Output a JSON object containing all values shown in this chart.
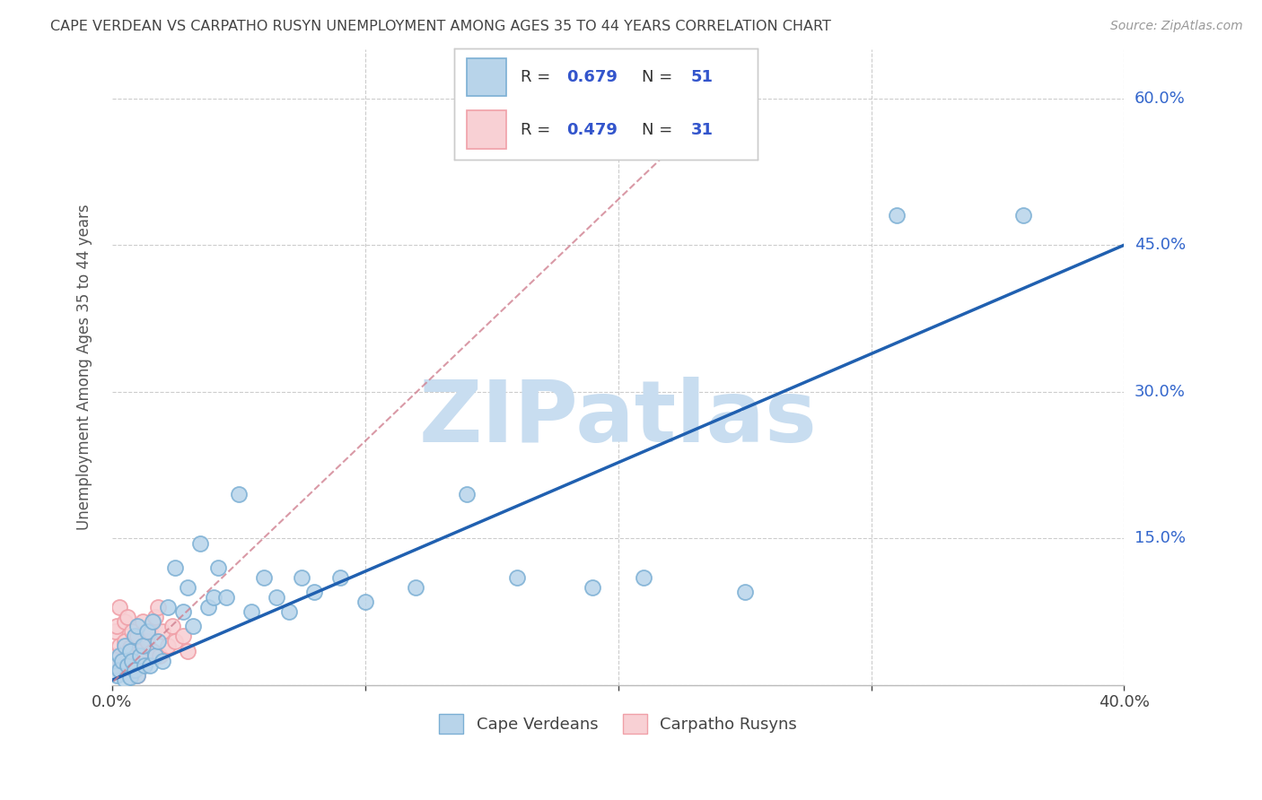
{
  "title": "CAPE VERDEAN VS CARPATHO RUSYN UNEMPLOYMENT AMONG AGES 35 TO 44 YEARS CORRELATION CHART",
  "source": "Source: ZipAtlas.com",
  "ylabel": "Unemployment Among Ages 35 to 44 years",
  "xlim": [
    0.0,
    0.4
  ],
  "ylim": [
    0.0,
    0.65
  ],
  "xticks": [
    0.0,
    0.1,
    0.2,
    0.3,
    0.4
  ],
  "xtick_labels": [
    "0.0%",
    "",
    "",
    "",
    "40.0%"
  ],
  "yticks": [
    0.0,
    0.15,
    0.3,
    0.45,
    0.6
  ],
  "ytick_labels": [
    "",
    "15.0%",
    "30.0%",
    "45.0%",
    "60.0%"
  ],
  "watermark": "ZIPatlas",
  "watermark_color": "#c8ddf0",
  "cv_color_edge": "#7bafd4",
  "cv_color_fill": "#b8d4ea",
  "cr_color_edge": "#f0a0a8",
  "cr_color_fill": "#f8d0d4",
  "trend_blue_color": "#2060b0",
  "trend_pink_color": "#d08090",
  "background": "#ffffff",
  "grid_color": "#cccccc",
  "title_color": "#444444",
  "ylabel_color": "#555555",
  "tick_color_x": "#444444",
  "tick_color_y": "#3366cc",
  "cv_scatter_x": [
    0.001,
    0.002,
    0.003,
    0.003,
    0.004,
    0.005,
    0.005,
    0.006,
    0.007,
    0.007,
    0.008,
    0.009,
    0.009,
    0.01,
    0.01,
    0.011,
    0.012,
    0.013,
    0.014,
    0.015,
    0.016,
    0.017,
    0.018,
    0.02,
    0.022,
    0.025,
    0.028,
    0.03,
    0.032,
    0.035,
    0.038,
    0.04,
    0.042,
    0.045,
    0.05,
    0.055,
    0.06,
    0.065,
    0.07,
    0.075,
    0.08,
    0.09,
    0.1,
    0.12,
    0.14,
    0.16,
    0.19,
    0.21,
    0.25,
    0.31,
    0.36
  ],
  "cv_scatter_y": [
    0.02,
    0.01,
    0.03,
    0.015,
    0.025,
    0.005,
    0.04,
    0.02,
    0.035,
    0.008,
    0.025,
    0.015,
    0.05,
    0.01,
    0.06,
    0.03,
    0.04,
    0.02,
    0.055,
    0.02,
    0.065,
    0.03,
    0.045,
    0.025,
    0.08,
    0.12,
    0.075,
    0.1,
    0.06,
    0.145,
    0.08,
    0.09,
    0.12,
    0.09,
    0.195,
    0.075,
    0.11,
    0.09,
    0.075,
    0.11,
    0.095,
    0.11,
    0.085,
    0.1,
    0.195,
    0.11,
    0.1,
    0.11,
    0.095,
    0.48,
    0.48
  ],
  "cr_scatter_x": [
    0.001,
    0.001,
    0.002,
    0.002,
    0.003,
    0.003,
    0.004,
    0.005,
    0.005,
    0.006,
    0.006,
    0.007,
    0.008,
    0.009,
    0.01,
    0.01,
    0.011,
    0.012,
    0.013,
    0.014,
    0.015,
    0.016,
    0.017,
    0.018,
    0.019,
    0.02,
    0.022,
    0.024,
    0.025,
    0.028,
    0.03
  ],
  "cr_scatter_y": [
    0.03,
    0.055,
    0.02,
    0.06,
    0.04,
    0.08,
    0.025,
    0.045,
    0.065,
    0.03,
    0.07,
    0.038,
    0.055,
    0.025,
    0.01,
    0.05,
    0.035,
    0.065,
    0.03,
    0.045,
    0.055,
    0.035,
    0.07,
    0.08,
    0.03,
    0.055,
    0.04,
    0.06,
    0.045,
    0.05,
    0.035
  ],
  "cv_trend_x": [
    0.0,
    0.4
  ],
  "cv_trend_y": [
    0.005,
    0.45
  ],
  "cr_trend_x": [
    -0.005,
    0.25
  ],
  "cr_trend_y": [
    -0.01,
    0.62
  ]
}
